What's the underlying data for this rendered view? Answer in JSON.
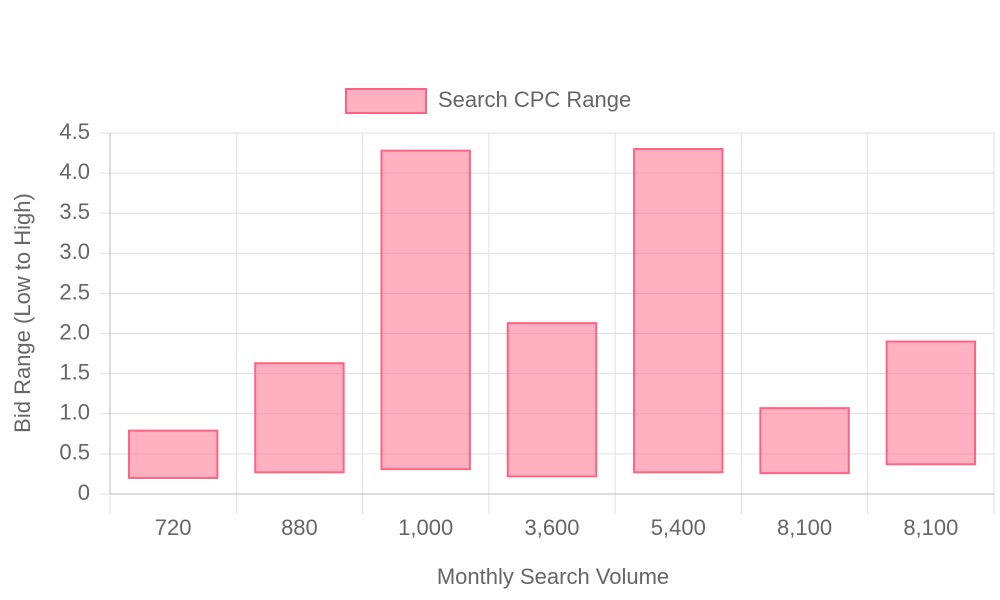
{
  "chart_data": {
    "type": "floating-bar",
    "x_label": "Monthly Search Volume",
    "y_label": "Bid Range (Low to High)",
    "categories": [
      "720",
      "880",
      "1,000",
      "3,600",
      "5,400",
      "8,100",
      "8,100"
    ],
    "series": [
      {
        "name": "Search CPC Range",
        "color": "#ff6384",
        "values": [
          [
            0.2,
            0.79
          ],
          [
            0.27,
            1.63
          ],
          [
            0.31,
            4.28
          ],
          [
            0.22,
            2.13
          ],
          [
            0.27,
            4.3
          ],
          [
            0.26,
            1.07
          ],
          [
            0.37,
            1.9
          ]
        ]
      }
    ],
    "ylim": [
      0,
      4.5
    ],
    "yticks": [
      0,
      0.5,
      {
        "value": 1,
        "label": "1.0"
      },
      1.5,
      {
        "value": 2,
        "label": "2.0"
      },
      2.5,
      {
        "value": 3,
        "label": "3.0"
      },
      3.5,
      {
        "value": 4,
        "label": "4.0"
      },
      4.5
    ],
    "grid": true,
    "legend": "top"
  }
}
